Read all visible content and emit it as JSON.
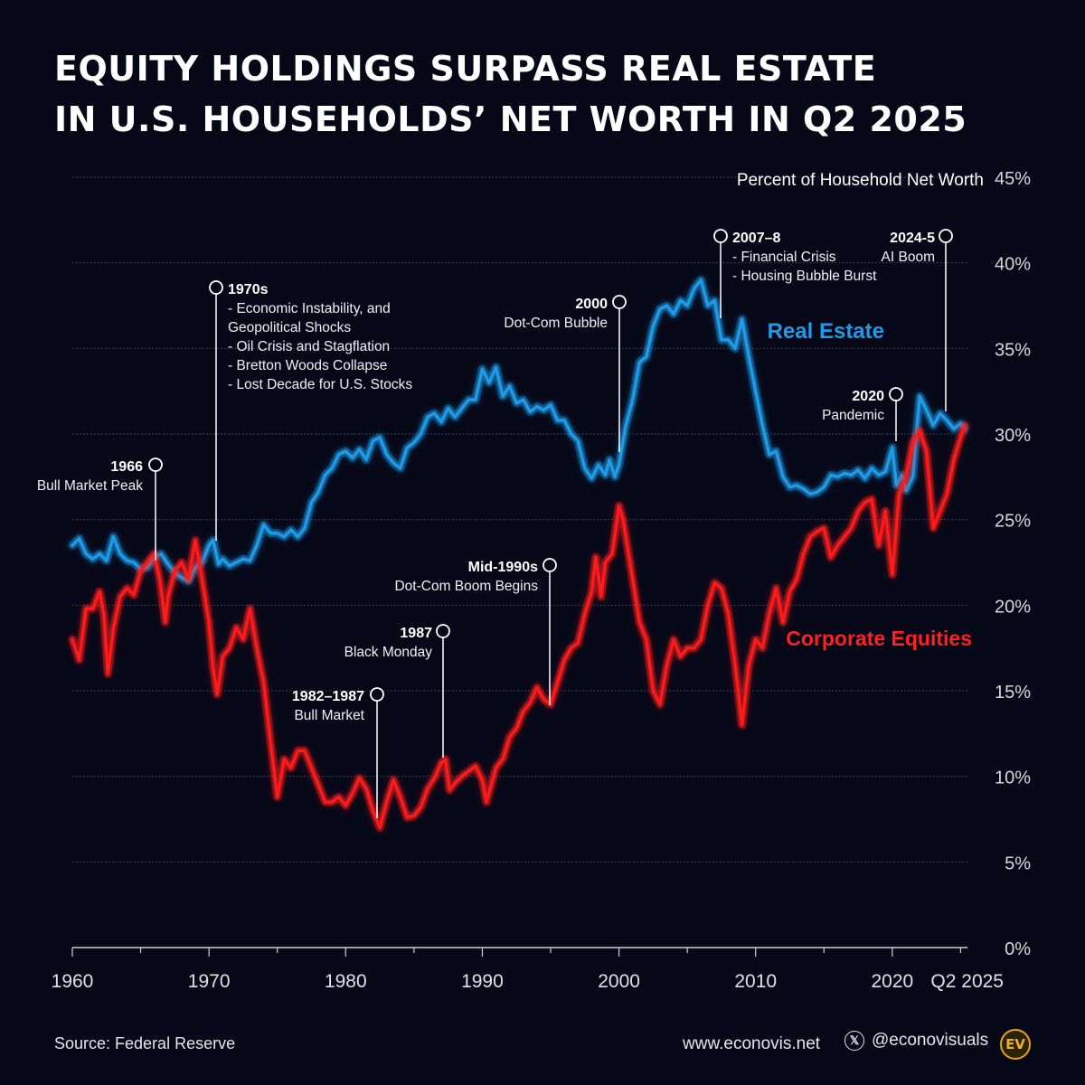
{
  "title_line1": "EQUITY HOLDINGS SURPASS REAL ESTATE",
  "title_line2": "IN U.S. HOUSEHOLDS’ NET WORTH IN Q2 2025",
  "footer": {
    "source": "Source: Federal Reserve",
    "website": "www.econovis.net",
    "handle": "@econovisuals",
    "logo_text": "EV"
  },
  "colors": {
    "background": "#060818",
    "real_estate": "#1e9be8",
    "equities": "#ff1a1a",
    "grid": "#5a5f70"
  },
  "chart_data": {
    "type": "line",
    "ylabel": "Percent of Household Net Worth",
    "ylim": [
      0,
      45
    ],
    "xlim": [
      1960,
      2025.5
    ],
    "y_ticks": [
      "0%",
      "5%",
      "10%",
      "15%",
      "20%",
      "25%",
      "30%",
      "35%",
      "40%",
      "45%"
    ],
    "x_tick_labels": [
      "1960",
      "1970",
      "1980",
      "1990",
      "2000",
      "2010",
      "2020",
      "Q2 2025"
    ],
    "grid": true,
    "series": [
      {
        "name": "Real Estate",
        "color": "#1e9be8",
        "points": [
          [
            1960,
            23.5
          ],
          [
            1960.5,
            23.9
          ],
          [
            1961,
            23.0
          ],
          [
            1961.5,
            22.7
          ],
          [
            1962,
            23.0
          ],
          [
            1962.5,
            22.6
          ],
          [
            1963,
            24.0
          ],
          [
            1963.5,
            23.0
          ],
          [
            1964,
            22.6
          ],
          [
            1964.5,
            22.5
          ],
          [
            1965,
            22.1
          ],
          [
            1965.5,
            22.2
          ],
          [
            1966,
            22.8
          ],
          [
            1966.5,
            23.0
          ],
          [
            1967,
            22.4
          ],
          [
            1967.5,
            21.9
          ],
          [
            1968,
            21.6
          ],
          [
            1968.5,
            21.4
          ],
          [
            1969,
            22.2
          ],
          [
            1969.5,
            22.5
          ],
          [
            1970,
            23.5
          ],
          [
            1970.3,
            23.8
          ],
          [
            1970.7,
            22.4
          ],
          [
            1971,
            22.7
          ],
          [
            1971.5,
            22.3
          ],
          [
            1972,
            22.5
          ],
          [
            1972.5,
            22.7
          ],
          [
            1973,
            22.6
          ],
          [
            1973.5,
            23.5
          ],
          [
            1974,
            24.7
          ],
          [
            1974.5,
            24.2
          ],
          [
            1975,
            24.2
          ],
          [
            1975.5,
            24.0
          ],
          [
            1976,
            24.4
          ],
          [
            1976.5,
            24.0
          ],
          [
            1977,
            24.5
          ],
          [
            1977.5,
            26.0
          ],
          [
            1978,
            26.6
          ],
          [
            1978.5,
            27.6
          ],
          [
            1979,
            28.0
          ],
          [
            1979.5,
            28.8
          ],
          [
            1980,
            29.0
          ],
          [
            1980.5,
            28.6
          ],
          [
            1981,
            29.1
          ],
          [
            1981.5,
            28.5
          ],
          [
            1982,
            29.6
          ],
          [
            1982.5,
            29.8
          ],
          [
            1983,
            28.8
          ],
          [
            1983.5,
            28.3
          ],
          [
            1984,
            28.0
          ],
          [
            1984.5,
            29.2
          ],
          [
            1985,
            29.5
          ],
          [
            1985.5,
            30.0
          ],
          [
            1986,
            31.0
          ],
          [
            1986.5,
            31.2
          ],
          [
            1987,
            30.7
          ],
          [
            1987.5,
            31.5
          ],
          [
            1988,
            31.0
          ],
          [
            1988.5,
            31.5
          ],
          [
            1989,
            32.0
          ],
          [
            1989.5,
            32.0
          ],
          [
            1990,
            33.8
          ],
          [
            1990.5,
            33.0
          ],
          [
            1991,
            33.9
          ],
          [
            1991.5,
            32.2
          ],
          [
            1992,
            32.8
          ],
          [
            1992.5,
            31.8
          ],
          [
            1993,
            32.0
          ],
          [
            1993.5,
            31.3
          ],
          [
            1994,
            31.6
          ],
          [
            1994.5,
            31.4
          ],
          [
            1995,
            31.7
          ],
          [
            1995.5,
            30.8
          ],
          [
            1996,
            30.8
          ],
          [
            1996.5,
            30.0
          ],
          [
            1997,
            29.6
          ],
          [
            1997.5,
            28.0
          ],
          [
            1998,
            27.4
          ],
          [
            1998.5,
            28.2
          ],
          [
            1999,
            27.6
          ],
          [
            1999.3,
            28.5
          ],
          [
            1999.7,
            27.5
          ],
          [
            2000,
            28.2
          ],
          [
            2000.5,
            30.5
          ],
          [
            2001,
            32.0
          ],
          [
            2001.5,
            34.2
          ],
          [
            2002,
            34.5
          ],
          [
            2002.5,
            36.3
          ],
          [
            2003,
            37.3
          ],
          [
            2003.5,
            37.5
          ],
          [
            2004,
            37.0
          ],
          [
            2004.5,
            37.8
          ],
          [
            2005,
            37.5
          ],
          [
            2005.5,
            38.5
          ],
          [
            2006,
            39.0
          ],
          [
            2006.5,
            37.5
          ],
          [
            2007,
            37.8
          ],
          [
            2007.5,
            35.5
          ],
          [
            2008,
            35.5
          ],
          [
            2008.5,
            35.0
          ],
          [
            2009,
            36.7
          ],
          [
            2009.5,
            34.5
          ],
          [
            2010,
            32.5
          ],
          [
            2010.5,
            30.5
          ],
          [
            2011,
            28.8
          ],
          [
            2011.5,
            29.0
          ],
          [
            2012,
            27.5
          ],
          [
            2012.5,
            26.9
          ],
          [
            2013,
            27.0
          ],
          [
            2013.5,
            26.8
          ],
          [
            2014,
            26.5
          ],
          [
            2014.5,
            26.6
          ],
          [
            2015,
            26.9
          ],
          [
            2015.5,
            27.6
          ],
          [
            2016,
            27.5
          ],
          [
            2016.5,
            27.7
          ],
          [
            2017,
            27.6
          ],
          [
            2017.5,
            27.9
          ],
          [
            2018,
            27.4
          ],
          [
            2018.5,
            28.0
          ],
          [
            2019,
            27.6
          ],
          [
            2019.5,
            27.8
          ],
          [
            2020,
            29.2
          ],
          [
            2020.3,
            27.0
          ],
          [
            2020.7,
            27.6
          ],
          [
            2021,
            26.7
          ],
          [
            2021.5,
            27.5
          ],
          [
            2022,
            32.2
          ],
          [
            2022.5,
            31.4
          ],
          [
            2023,
            30.5
          ],
          [
            2023.5,
            31.2
          ],
          [
            2024,
            30.8
          ],
          [
            2024.5,
            30.3
          ],
          [
            2025,
            30.6
          ],
          [
            2025.3,
            30.3
          ]
        ]
      },
      {
        "name": "Corporate Equities",
        "color": "#ff1a1a",
        "points": [
          [
            1960,
            18.0
          ],
          [
            1960.5,
            16.8
          ],
          [
            1961,
            19.8
          ],
          [
            1961.5,
            19.8
          ],
          [
            1962,
            20.8
          ],
          [
            1962.3,
            19.5
          ],
          [
            1962.6,
            16.0
          ],
          [
            1963,
            18.6
          ],
          [
            1963.5,
            20.5
          ],
          [
            1964,
            21.0
          ],
          [
            1964.5,
            20.6
          ],
          [
            1965,
            22.0
          ],
          [
            1965.5,
            22.5
          ],
          [
            1966,
            23.0
          ],
          [
            1966.4,
            21.5
          ],
          [
            1966.8,
            19.0
          ],
          [
            1967,
            20.5
          ],
          [
            1967.5,
            22.0
          ],
          [
            1968,
            22.5
          ],
          [
            1968.5,
            21.5
          ],
          [
            1969,
            23.8
          ],
          [
            1969.5,
            21.5
          ],
          [
            1970,
            19.0
          ],
          [
            1970.3,
            16.3
          ],
          [
            1970.6,
            14.8
          ],
          [
            1971,
            17.0
          ],
          [
            1971.5,
            17.5
          ],
          [
            1972,
            18.7
          ],
          [
            1972.5,
            18.0
          ],
          [
            1973,
            19.8
          ],
          [
            1973.5,
            17.5
          ],
          [
            1974,
            15.5
          ],
          [
            1974.5,
            12.0
          ],
          [
            1975,
            8.8
          ],
          [
            1975.5,
            11.0
          ],
          [
            1976,
            10.5
          ],
          [
            1976.5,
            11.5
          ],
          [
            1977,
            11.5
          ],
          [
            1977.5,
            10.5
          ],
          [
            1978,
            9.5
          ],
          [
            1978.5,
            8.5
          ],
          [
            1979,
            8.5
          ],
          [
            1979.5,
            8.8
          ],
          [
            1980,
            8.3
          ],
          [
            1980.5,
            9.0
          ],
          [
            1981,
            9.9
          ],
          [
            1981.5,
            9.3
          ],
          [
            1982,
            8.0
          ],
          [
            1982.5,
            7.0
          ],
          [
            1983,
            8.5
          ],
          [
            1983.5,
            9.8
          ],
          [
            1984,
            8.8
          ],
          [
            1984.5,
            7.6
          ],
          [
            1985,
            7.7
          ],
          [
            1985.5,
            8.2
          ],
          [
            1986,
            9.3
          ],
          [
            1986.5,
            9.9
          ],
          [
            1987,
            10.8
          ],
          [
            1987.3,
            11.0
          ],
          [
            1987.6,
            9.2
          ],
          [
            1988,
            9.6
          ],
          [
            1988.5,
            10.0
          ],
          [
            1989,
            10.3
          ],
          [
            1989.5,
            10.6
          ],
          [
            1990,
            9.8
          ],
          [
            1990.3,
            8.5
          ],
          [
            1991,
            10.5
          ],
          [
            1991.5,
            11.0
          ],
          [
            1992,
            12.3
          ],
          [
            1992.5,
            12.8
          ],
          [
            1993,
            13.8
          ],
          [
            1993.5,
            14.3
          ],
          [
            1994,
            15.2
          ],
          [
            1994.5,
            14.5
          ],
          [
            1995,
            14.2
          ],
          [
            1995.5,
            15.5
          ],
          [
            1996,
            16.8
          ],
          [
            1996.5,
            17.5
          ],
          [
            1997,
            17.8
          ],
          [
            1997.5,
            19.5
          ],
          [
            1998,
            20.8
          ],
          [
            1998.3,
            22.8
          ],
          [
            1998.7,
            20.5
          ],
          [
            1999,
            22.5
          ],
          [
            1999.5,
            23.0
          ],
          [
            2000,
            25.8
          ],
          [
            2000.3,
            25.0
          ],
          [
            2000.7,
            23.0
          ],
          [
            2001,
            21.5
          ],
          [
            2001.5,
            19.0
          ],
          [
            2002,
            18.0
          ],
          [
            2002.5,
            15.0
          ],
          [
            2003,
            14.2
          ],
          [
            2003.5,
            16.5
          ],
          [
            2004,
            18.0
          ],
          [
            2004.5,
            17.0
          ],
          [
            2005,
            17.5
          ],
          [
            2005.5,
            17.5
          ],
          [
            2006,
            18.0
          ],
          [
            2006.5,
            20.0
          ],
          [
            2007,
            21.3
          ],
          [
            2007.5,
            21.0
          ],
          [
            2008,
            19.5
          ],
          [
            2008.5,
            16.5
          ],
          [
            2009,
            13.0
          ],
          [
            2009.5,
            16.5
          ],
          [
            2010,
            18.0
          ],
          [
            2010.5,
            17.5
          ],
          [
            2011,
            19.5
          ],
          [
            2011.5,
            21.0
          ],
          [
            2012,
            19.0
          ],
          [
            2012.5,
            20.8
          ],
          [
            2013,
            21.5
          ],
          [
            2013.5,
            23.0
          ],
          [
            2014,
            24.0
          ],
          [
            2014.5,
            24.3
          ],
          [
            2015,
            24.5
          ],
          [
            2015.5,
            22.8
          ],
          [
            2016,
            23.5
          ],
          [
            2016.5,
            24.0
          ],
          [
            2017,
            24.5
          ],
          [
            2017.5,
            25.5
          ],
          [
            2018,
            26.0
          ],
          [
            2018.5,
            26.2
          ],
          [
            2019,
            23.5
          ],
          [
            2019.5,
            25.5
          ],
          [
            2020,
            21.8
          ],
          [
            2020.5,
            26.5
          ],
          [
            2021,
            27.5
          ],
          [
            2021.5,
            29.5
          ],
          [
            2022,
            30.2
          ],
          [
            2022.5,
            29.0
          ],
          [
            2023,
            24.5
          ],
          [
            2023.5,
            25.5
          ],
          [
            2024,
            26.5
          ],
          [
            2024.5,
            28.5
          ],
          [
            2025,
            29.8
          ],
          [
            2025.3,
            30.5
          ]
        ]
      }
    ],
    "annotations": [
      {
        "year": "1966",
        "label": "Bull Market Peak"
      },
      {
        "year": "1970s",
        "label": "- Economic Instability, and\n   Geopolitical Shocks\n- Oil Crisis and Stagflation\n- Bretton Woods Collapse\n- Lost Decade for U.S. Stocks"
      },
      {
        "year": "1982–1987",
        "label": "Bull Market"
      },
      {
        "year": "1987",
        "label": "Black Monday"
      },
      {
        "year": "Mid-1990s",
        "label": "Dot-Com Boom Begins"
      },
      {
        "year": "2000",
        "label": "Dot-Com Bubble"
      },
      {
        "year": "2007–8",
        "label": "- Financial Crisis\n- Housing Bubble Burst"
      },
      {
        "year": "2020",
        "label": "Pandemic"
      },
      {
        "year": "2024-5",
        "label": "AI Boom"
      }
    ]
  }
}
